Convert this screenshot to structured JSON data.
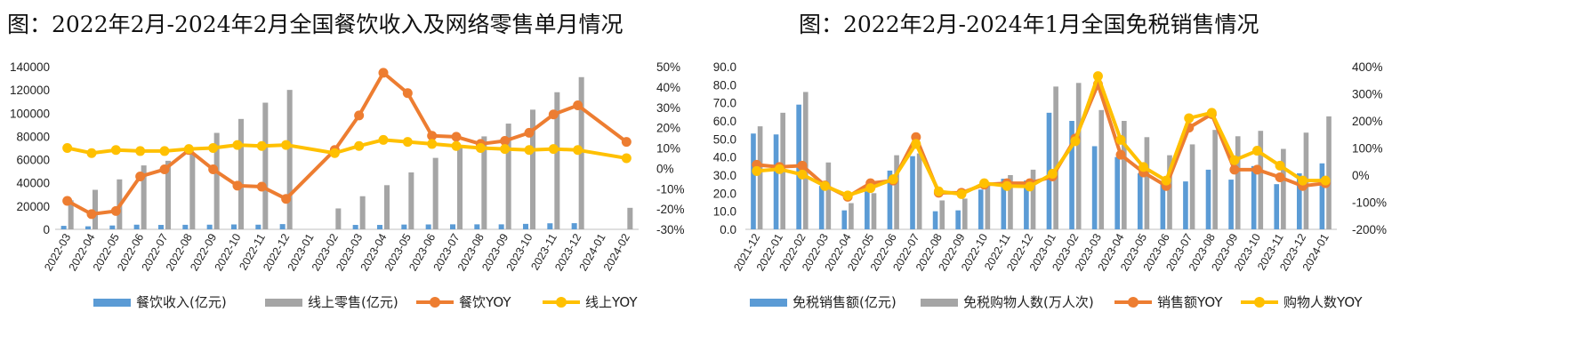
{
  "colors": {
    "blue": "#5B9BD5",
    "gray": "#A5A5A5",
    "orange": "#ED7D31",
    "yellow": "#FFC000",
    "axis": "#BFBFBF"
  },
  "chart_data": [
    {
      "type": "bar+line",
      "title": "图：2022年2月-2024年2月全国餐饮收入及网络零售单月情况",
      "categories": [
        "2022-03",
        "2022-04",
        "2022-05",
        "2022-06",
        "2022-07",
        "2022-08",
        "2022-09",
        "2022-10",
        "2022-11",
        "2022-12",
        "2023-01",
        "2023-02",
        "2023-03",
        "2023-04",
        "2023-05",
        "2023-06",
        "2023-07",
        "2023-08",
        "2023-09",
        "2023-10",
        "2023-11",
        "2023-12",
        "2024-01",
        "2024-02"
      ],
      "left_axis": {
        "min": 0,
        "max": 140000,
        "ticks": [
          "0",
          "20000",
          "40000",
          "60000",
          "80000",
          "100000",
          "120000",
          "140000"
        ],
        "tick_values": [
          0,
          20000,
          40000,
          60000,
          80000,
          100000,
          120000,
          140000
        ]
      },
      "right_axis": {
        "min": -30,
        "max": 50,
        "ticks": [
          "-30%",
          "-20%",
          "-10%",
          "0%",
          "10%",
          "20%",
          "30%",
          "40%",
          "50%"
        ],
        "tick_values": [
          -30,
          -20,
          -10,
          0,
          10,
          20,
          30,
          40,
          50
        ]
      },
      "series": [
        {
          "name": "餐饮收入(亿元)",
          "kind": "bar",
          "axis": "left",
          "color": "#5B9BD5",
          "values": [
            3000,
            2600,
            3300,
            4000,
            3800,
            3900,
            4000,
            4200,
            4000,
            4500,
            null,
            null,
            3800,
            3800,
            4100,
            4200,
            4300,
            4300,
            4300,
            4700,
            5200,
            5300,
            null,
            null
          ]
        },
        {
          "name": "线上零售(亿元)",
          "kind": "bar",
          "axis": "left",
          "color": "#A5A5A5",
          "values": [
            25000,
            34000,
            43000,
            55000,
            59000,
            65000,
            83000,
            95000,
            109000,
            120000,
            null,
            18000,
            28500,
            38000,
            49000,
            61500,
            70500,
            80000,
            91000,
            103000,
            118000,
            131000,
            null,
            18500
          ]
        },
        {
          "name": "餐饮YOY",
          "kind": "line",
          "axis": "right",
          "color": "#ED7D31",
          "values": [
            -16,
            -22.5,
            -21,
            -4,
            -0.5,
            9,
            -0.5,
            -8.5,
            -9,
            -15,
            null,
            9,
            26,
            47,
            37,
            16,
            15.5,
            12,
            13.5,
            17.5,
            26.5,
            31,
            null,
            13
          ]
        },
        {
          "name": "线上YOY",
          "kind": "line",
          "axis": "right",
          "color": "#FFC000",
          "values": [
            10,
            7.5,
            9,
            8.5,
            8.5,
            9.5,
            10,
            11.5,
            11,
            11.5,
            null,
            7.5,
            11,
            14,
            13,
            12,
            11,
            10,
            9.5,
            9,
            9.5,
            9,
            null,
            5
          ]
        }
      ]
    },
    {
      "type": "bar+line",
      "title": "图：2022年2月-2024年1月全国免税销售情况",
      "categories": [
        "2021-12",
        "2022-01",
        "2022-02",
        "2022-03",
        "2022-04",
        "2022-05",
        "2022-06",
        "2022-07",
        "2022-08",
        "2022-09",
        "2022-10",
        "2022-11",
        "2022-12",
        "2023-01",
        "2023-02",
        "2023-03",
        "2023-04",
        "2023-05",
        "2023-06",
        "2023-07",
        "2023-08",
        "2023-09",
        "2023-10",
        "2023-11",
        "2023-12",
        "2024-01"
      ],
      "left_axis": {
        "min": 0,
        "max": 90,
        "ticks": [
          "0.0",
          "10.0",
          "20.0",
          "30.0",
          "40.0",
          "50.0",
          "60.0",
          "70.0",
          "80.0",
          "90.0"
        ],
        "tick_values": [
          0,
          10,
          20,
          30,
          40,
          50,
          60,
          70,
          80,
          90
        ]
      },
      "right_axis": {
        "min": -200,
        "max": 400,
        "ticks": [
          "-200%",
          "-100%",
          "0%",
          "100%",
          "200%",
          "300%",
          "400%"
        ],
        "tick_values": [
          -200,
          -100,
          0,
          100,
          200,
          300,
          400
        ]
      },
      "series": [
        {
          "name": "免税销售额(亿元)",
          "kind": "bar",
          "axis": "left",
          "color": "#5B9BD5",
          "values": [
            53,
            52.5,
            69,
            24,
            10.5,
            21,
            32.5,
            40.5,
            10,
            10.5,
            22,
            28,
            27,
            64.5,
            60,
            46,
            40,
            31,
            25,
            26.5,
            33,
            27.5,
            35,
            25,
            31,
            36.5
          ]
        },
        {
          "name": "免税购物人数(万人次)",
          "kind": "bar",
          "axis": "left",
          "color": "#A5A5A5",
          "values": [
            57,
            64.5,
            76,
            37,
            14.5,
            20,
            41,
            42,
            16,
            17,
            25,
            30,
            33,
            79,
            81,
            66,
            60,
            51,
            41,
            47,
            55,
            51.5,
            54.5,
            44.5,
            53.5,
            62.5
          ]
        },
        {
          "name": "销售额YOY",
          "kind": "line",
          "axis": "right",
          "color": "#ED7D31",
          "values": [
            38,
            30,
            35,
            -38,
            -80,
            -30,
            -20,
            140,
            -65,
            -65,
            -35,
            -30,
            -30,
            -5,
            135,
            335,
            75,
            10,
            -40,
            175,
            225,
            20,
            20,
            -8,
            -40,
            -30
          ]
        },
        {
          "name": "购物人数YOY",
          "kind": "line",
          "axis": "right",
          "color": "#FFC000",
          "values": [
            15,
            22,
            2,
            -40,
            -75,
            -48,
            -15,
            115,
            -60,
            -70,
            -30,
            -40,
            -42,
            5,
            125,
            365,
            130,
            30,
            -20,
            210,
            230,
            55,
            90,
            35,
            -20,
            -20
          ]
        }
      ]
    }
  ]
}
